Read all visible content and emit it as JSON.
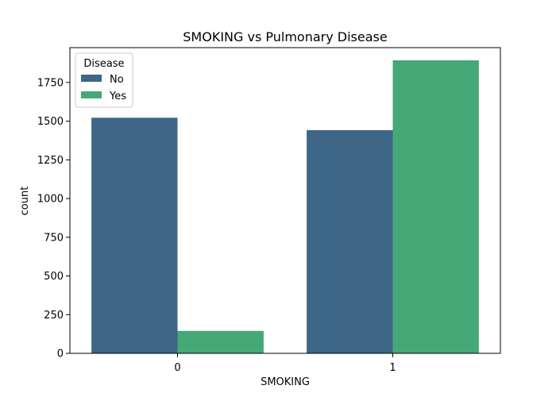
{
  "chart_data": {
    "type": "bar",
    "title": "SMOKING vs Pulmonary Disease",
    "xlabel": "SMOKING",
    "ylabel": "count",
    "categories": [
      "0",
      "1"
    ],
    "ylim": [
      0,
      1975
    ],
    "yticks": [
      0,
      250,
      500,
      750,
      1000,
      1250,
      1500,
      1750
    ],
    "grid": false,
    "legend": {
      "title": "Disease",
      "placement": "top-left"
    },
    "series": [
      {
        "name": "No",
        "color": "#3e6687",
        "values": [
          1522,
          1442
        ]
      },
      {
        "name": "Yes",
        "color": "#45a877",
        "values": [
          145,
          1893
        ]
      }
    ]
  }
}
